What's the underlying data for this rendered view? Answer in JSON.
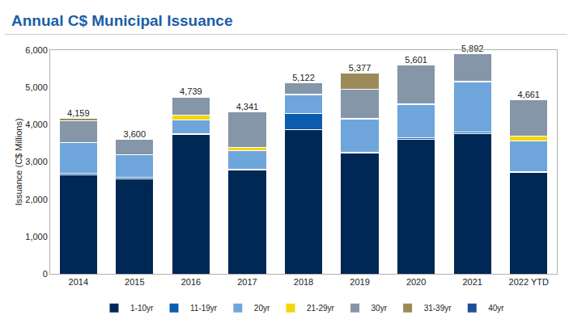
{
  "chart_data": {
    "type": "bar",
    "title": "Annual C$ Municipal Issuance",
    "y_label": "Issuance (C$ Millions)",
    "categories": [
      "2014",
      "2015",
      "2016",
      "2017",
      "2018",
      "2019",
      "2020",
      "2021",
      "2022 YTD"
    ],
    "stacked": true,
    "grid": false,
    "legend": "bottom",
    "ylim": [
      0,
      6000
    ],
    "yticks": [
      0,
      {
        "value": 1000,
        "label": "1,000"
      },
      {
        "value": 2000,
        "label": "2,000"
      },
      {
        "value": 3000,
        "label": "3,000"
      },
      {
        "value": 4000,
        "label": "4,000"
      },
      {
        "value": 5000,
        "label": "5,000"
      },
      {
        "value": 6000,
        "label": "6,000"
      }
    ],
    "series": [
      {
        "name": "1-10yr",
        "color": "#002855",
        "values": [
          2660,
          2550,
          3730,
          2790,
          3870,
          3230,
          3600,
          3760,
          2720
        ]
      },
      {
        "name": "11-19yr",
        "color": "#0b5cad",
        "values": [
          30,
          40,
          20,
          20,
          420,
          20,
          50,
          50,
          30
        ]
      },
      {
        "name": "20yr",
        "color": "#6ea6dc",
        "values": [
          840,
          600,
          380,
          500,
          510,
          900,
          890,
          1340,
          820
        ]
      },
      {
        "name": "21-29yr",
        "color": "#f5d60a",
        "values": [
          0,
          0,
          130,
          90,
          20,
          20,
          20,
          20,
          130
        ]
      },
      {
        "name": "30yr",
        "color": "#8496a8",
        "values": [
          570,
          410,
          479,
          941,
          302,
          770,
          1041,
          722,
          961
        ]
      },
      {
        "name": "31-39yr",
        "color": "#9c8a59",
        "values": [
          59,
          0,
          0,
          0,
          0,
          437,
          0,
          0,
          0
        ]
      },
      {
        "name": "40yr",
        "color": "#1b4f99",
        "values": [
          0,
          0,
          0,
          0,
          0,
          0,
          0,
          0,
          0
        ]
      }
    ],
    "totals": [
      4159,
      3600,
      4739,
      4341,
      5122,
      5377,
      5601,
      5892,
      4661
    ],
    "total_labels": [
      "4,159",
      "3,600",
      "4,739",
      "4,341",
      "5,122",
      "5,377",
      "5,601",
      "5,892",
      "4,661"
    ]
  }
}
